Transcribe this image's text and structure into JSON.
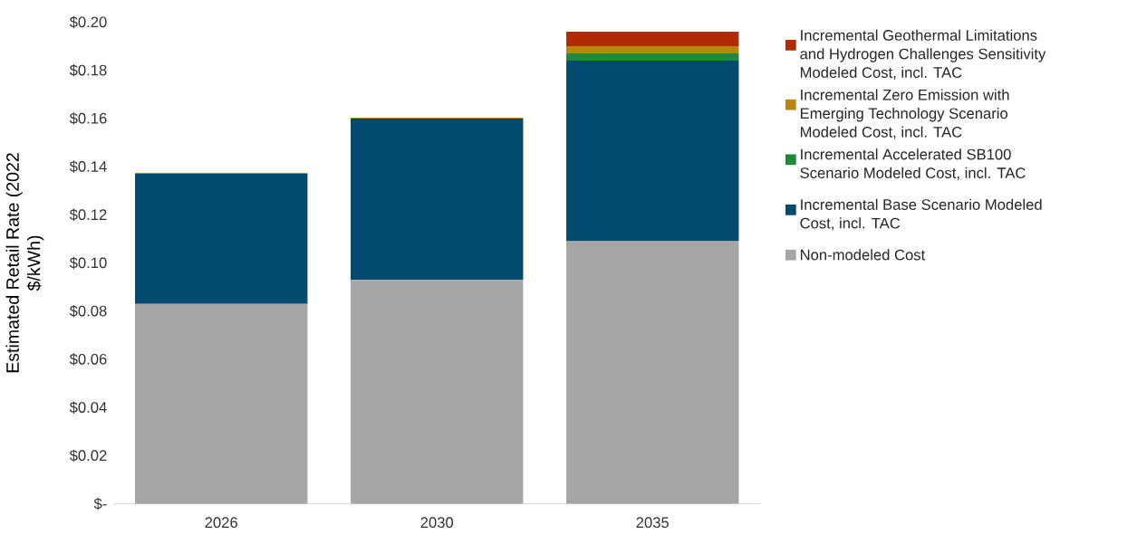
{
  "chart_data": {
    "type": "bar",
    "stacked": true,
    "ylabel": "Estimated Retail Rate (2022 $/kWh)",
    "categories": [
      "2026",
      "2030",
      "2035"
    ],
    "series": [
      {
        "name": "Non-modeled Cost",
        "color": "#a6a6a6",
        "values": [
          0.083,
          0.093,
          0.109
        ]
      },
      {
        "name": "Incremental Base Scenario Modeled Cost, incl. TAC",
        "color": "#034b6e",
        "values": [
          0.054,
          0.067,
          0.075
        ]
      },
      {
        "name": "Incremental Accelerated SB100 Scenario Modeled Cost, incl. TAC",
        "color": "#1e8a3c",
        "values": [
          0,
          0,
          0.003
        ]
      },
      {
        "name": "Incremental Zero Emission with Emerging Technology Scenario Modeled Cost, incl. TAC",
        "color": "#b8860b",
        "values": [
          0.0004,
          0.0003,
          0.003
        ]
      },
      {
        "name": "Incremental Geothermal Limitations and Hydrogen Challenges Sensitivity Modeled Cost, incl. TAC",
        "color": "#b22a00",
        "values": [
          0,
          0,
          0.006
        ]
      }
    ],
    "ylim": [
      0,
      0.2
    ],
    "yticks": [
      {
        "value": 0,
        "label": "$-"
      },
      {
        "value": 0.02,
        "label": "$0.02"
      },
      {
        "value": 0.04,
        "label": "$0.04"
      },
      {
        "value": 0.06,
        "label": "$0.06"
      },
      {
        "value": 0.08,
        "label": "$0.08"
      },
      {
        "value": 0.1,
        "label": "$0.10"
      },
      {
        "value": 0.12,
        "label": "$0.12"
      },
      {
        "value": 0.14,
        "label": "$0.14"
      },
      {
        "value": 0.16,
        "label": "$0.16"
      },
      {
        "value": 0.18,
        "label": "$0.18"
      },
      {
        "value": 0.2,
        "label": "$0.20"
      }
    ],
    "legend": "right"
  }
}
